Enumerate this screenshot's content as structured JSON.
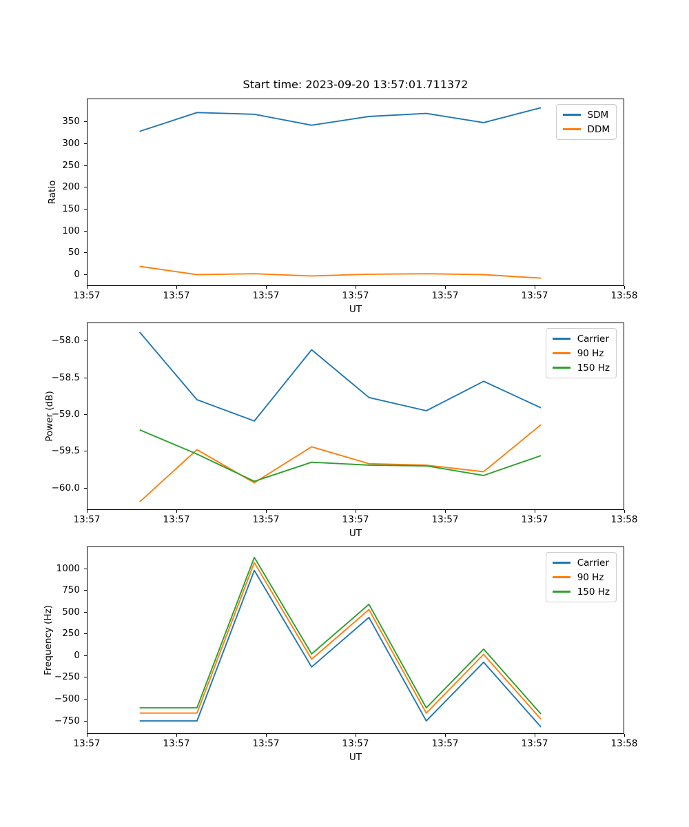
{
  "title": "Start time: 2023-09-20 13:57:01.711372",
  "colors": {
    "blue": "#1f77b4",
    "orange": "#ff7f0e",
    "green": "#2ca02c"
  },
  "x_axis": {
    "label": "UT",
    "range": [
      0,
      60
    ],
    "tick_positions": [
      0,
      10,
      20,
      30,
      40,
      50,
      60
    ],
    "tick_labels": [
      "13:57",
      "13:57",
      "13:57",
      "13:57",
      "13:57",
      "13:57",
      "13:58"
    ]
  },
  "chart_data": [
    {
      "type": "line",
      "title": "Start time: 2023-09-20 13:57:01.711372",
      "xlabel": "UT",
      "ylabel": "Ratio",
      "ylim": [
        -26,
        403
      ],
      "ytick_values": [
        0,
        50,
        100,
        150,
        200,
        250,
        300,
        350
      ],
      "ytick_labels": [
        "0",
        "50",
        "100",
        "150",
        "200",
        "250",
        "300",
        "350"
      ],
      "legend_position": "upper right",
      "x": [
        5.9,
        12.3,
        18.7,
        25.1,
        31.5,
        37.9,
        44.3,
        50.7
      ],
      "series": [
        {
          "name": "SDM",
          "color": "#1f77b4",
          "values": [
            328,
            371,
            367,
            342,
            362,
            369,
            348,
            382
          ]
        },
        {
          "name": "DDM",
          "color": "#ff7f0e",
          "values": [
            19,
            0,
            2,
            -3,
            1,
            2,
            0,
            -8
          ]
        }
      ]
    },
    {
      "type": "line",
      "xlabel": "UT",
      "ylabel": "Power (dB)",
      "ylim": [
        -60.3,
        -57.75
      ],
      "ytick_values": [
        -58.0,
        -58.5,
        -59.0,
        -59.5,
        -60.0
      ],
      "ytick_labels": [
        "−58.0",
        "−58.5",
        "−59.0",
        "−59.5",
        "−60.0"
      ],
      "legend_position": "upper right",
      "x": [
        5.9,
        12.3,
        18.7,
        25.1,
        31.5,
        37.9,
        44.3,
        50.7
      ],
      "series": [
        {
          "name": "Carrier",
          "color": "#1f77b4",
          "values": [
            -57.88,
            -58.8,
            -59.09,
            -58.12,
            -58.77,
            -58.95,
            -58.55,
            -58.91
          ]
        },
        {
          "name": "90 Hz",
          "color": "#ff7f0e",
          "values": [
            -60.19,
            -59.48,
            -59.93,
            -59.44,
            -59.67,
            -59.69,
            -59.78,
            -59.14
          ]
        },
        {
          "name": "150 Hz",
          "color": "#2ca02c",
          "values": [
            -59.21,
            -59.54,
            -59.91,
            -59.65,
            -59.69,
            -59.7,
            -59.83,
            -59.56
          ]
        }
      ]
    },
    {
      "type": "line",
      "xlabel": "UT",
      "ylabel": "Frequency (Hz)",
      "ylim": [
        -900,
        1255
      ],
      "ytick_values": [
        1000,
        750,
        500,
        250,
        0,
        -250,
        -500,
        -750
      ],
      "ytick_labels": [
        "1000",
        "750",
        "500",
        "250",
        "0",
        "−250",
        "−500",
        "−750"
      ],
      "legend_position": "upper right",
      "x": [
        5.9,
        12.3,
        18.7,
        25.1,
        31.5,
        37.9,
        44.3,
        50.7
      ],
      "series": [
        {
          "name": "Carrier",
          "color": "#1f77b4",
          "values": [
            -750,
            -750,
            980,
            -130,
            440,
            -750,
            -75,
            -820
          ]
        },
        {
          "name": "90 Hz",
          "color": "#ff7f0e",
          "values": [
            -660,
            -660,
            1070,
            -40,
            530,
            -660,
            15,
            -730
          ]
        },
        {
          "name": "150 Hz",
          "color": "#2ca02c",
          "values": [
            -600,
            -600,
            1130,
            20,
            590,
            -600,
            75,
            -670
          ]
        }
      ]
    }
  ]
}
